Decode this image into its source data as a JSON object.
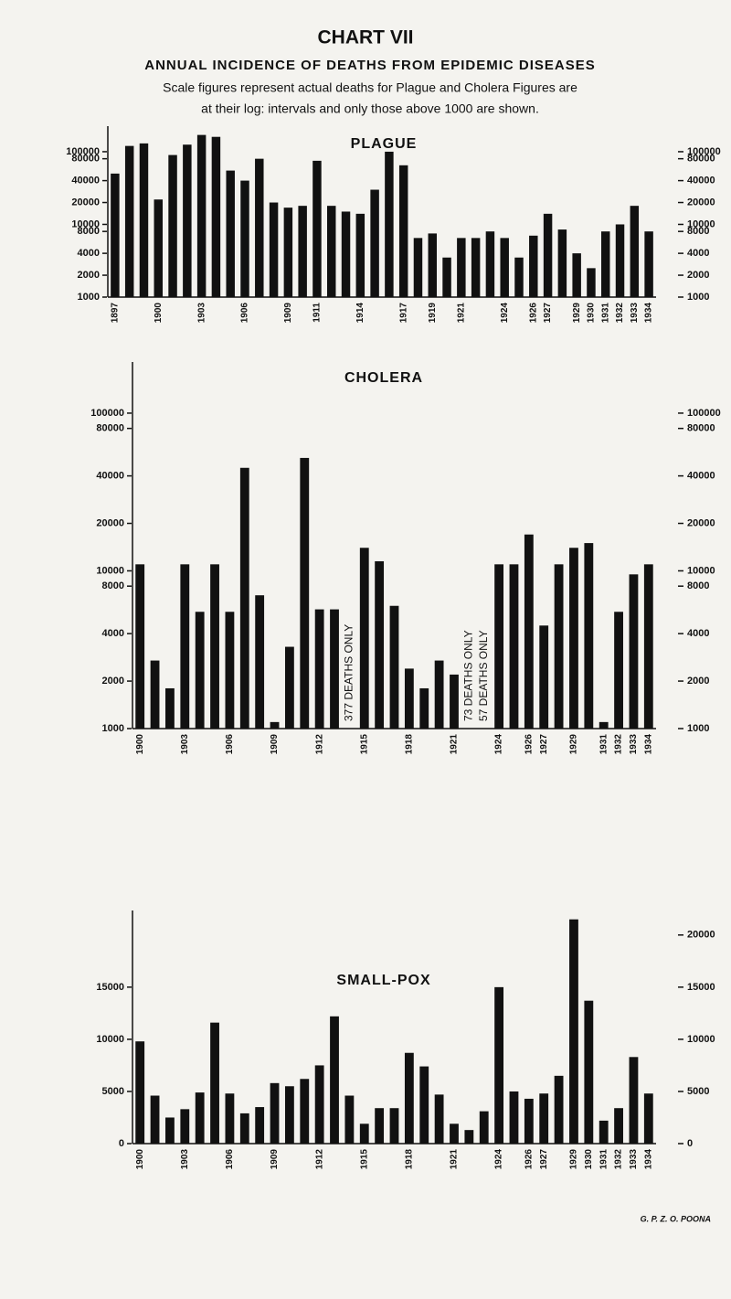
{
  "header": {
    "title": "CHART VII",
    "subtitle": "ANNUAL INCIDENCE OF DEATHS FROM EPIDEMIC DISEASES",
    "note_lines": [
      "Scale figures represent actual deaths for Plague and Cholera Figures are",
      "at their log: intervals and only those above 1000 are shown."
    ]
  },
  "chart_data": [
    {
      "type": "bar",
      "title": "PLAGUE",
      "log_scale": true,
      "color": "#111111",
      "categories": [
        "1897",
        null,
        null,
        "1900",
        null,
        null,
        "1903",
        null,
        null,
        "1906",
        null,
        null,
        "1909",
        null,
        "1911",
        null,
        null,
        "1914",
        null,
        null,
        "1917",
        null,
        "1919",
        null,
        "1921",
        null,
        null,
        "1924",
        null,
        "1926",
        "1927",
        null,
        "1929",
        "1930",
        "1931",
        "1932",
        "1933",
        "1934"
      ],
      "values": [
        50000,
        120000,
        130000,
        22000,
        90000,
        125000,
        170000,
        160000,
        55000,
        40000,
        80000,
        20000,
        17000,
        18000,
        75000,
        18000,
        15000,
        14000,
        30000,
        100000,
        65000,
        6500,
        7500,
        3500,
        6500,
        6500,
        8000,
        6500,
        3500,
        7000,
        14000,
        8500,
        4000,
        2500,
        8000,
        10000,
        18000,
        8000
      ],
      "ylim": [
        1000,
        200000
      ],
      "yticks": [
        1000,
        2000,
        4000,
        8000,
        10000,
        20000,
        40000,
        80000,
        100000
      ],
      "y2lim": [
        1000,
        200000
      ],
      "y2ticks": [
        1000,
        2000,
        4000,
        8000,
        10000,
        20000,
        40000,
        80000,
        100000
      ]
    },
    {
      "type": "bar",
      "title": "CHOLERA",
      "log_scale": true,
      "color": "#111111",
      "categories": [
        "1900",
        null,
        null,
        "1903",
        null,
        null,
        "1906",
        null,
        null,
        "1909",
        null,
        null,
        "1912",
        null,
        null,
        "1915",
        null,
        null,
        "1918",
        null,
        null,
        "1921",
        null,
        null,
        "1924",
        null,
        "1926",
        "1927",
        null,
        "1929",
        null,
        "1931",
        "1932",
        "1933",
        "1934"
      ],
      "values": [
        11000,
        2700,
        1800,
        11000,
        5500,
        11000,
        5500,
        45000,
        7000,
        1100,
        3300,
        52000,
        5700,
        5700,
        377,
        14000,
        11500,
        6000,
        2400,
        1800,
        2700,
        2200,
        73,
        57,
        11000,
        11000,
        17000,
        4500,
        11000,
        14000,
        15000,
        1100,
        5500,
        9500,
        11000
      ],
      "value_labels": [
        null,
        null,
        null,
        null,
        null,
        null,
        null,
        null,
        null,
        null,
        null,
        null,
        null,
        null,
        "377 DEATHS ONLY",
        null,
        null,
        null,
        null,
        null,
        null,
        null,
        "73 DEATHS ONLY",
        "57 DEATHS ONLY",
        null,
        null,
        null,
        null,
        null,
        null,
        null,
        null,
        null,
        null,
        null
      ],
      "ylim": [
        1000,
        200000
      ],
      "yticks": [
        1000,
        2000,
        4000,
        8000,
        10000,
        20000,
        40000,
        80000,
        100000
      ],
      "y2lim": [
        1000,
        200000
      ],
      "y2ticks": [
        1000,
        2000,
        4000,
        8000,
        10000,
        20000,
        40000,
        80000,
        100000
      ]
    },
    {
      "type": "bar",
      "title": "SMALL-POX",
      "log_scale": false,
      "color": "#111111",
      "categories": [
        "1900",
        null,
        null,
        "1903",
        null,
        null,
        "1906",
        null,
        null,
        "1909",
        null,
        null,
        "1912",
        null,
        null,
        "1915",
        null,
        null,
        "1918",
        null,
        null,
        "1921",
        null,
        null,
        "1924",
        null,
        "1926",
        "1927",
        null,
        "1929",
        "1930",
        "1931",
        "1932",
        "1933",
        "1934"
      ],
      "values": [
        9800,
        4600,
        2500,
        3300,
        4900,
        11600,
        4800,
        2900,
        3500,
        5800,
        5500,
        6200,
        7500,
        12200,
        4600,
        1900,
        3400,
        3400,
        8700,
        7400,
        4700,
        1900,
        1300,
        3100,
        15000,
        5000,
        4300,
        4800,
        6500,
        21500,
        13700,
        2200,
        3400,
        8300,
        4800
      ],
      "ylim": [
        0,
        22000
      ],
      "yticks": [
        0,
        5000,
        10000,
        15000
      ],
      "y2lim": [
        0,
        22000
      ],
      "y2ticks": [
        0,
        5000,
        10000,
        15000,
        20000
      ]
    }
  ],
  "footer": "G. P. Z. O. POONA"
}
